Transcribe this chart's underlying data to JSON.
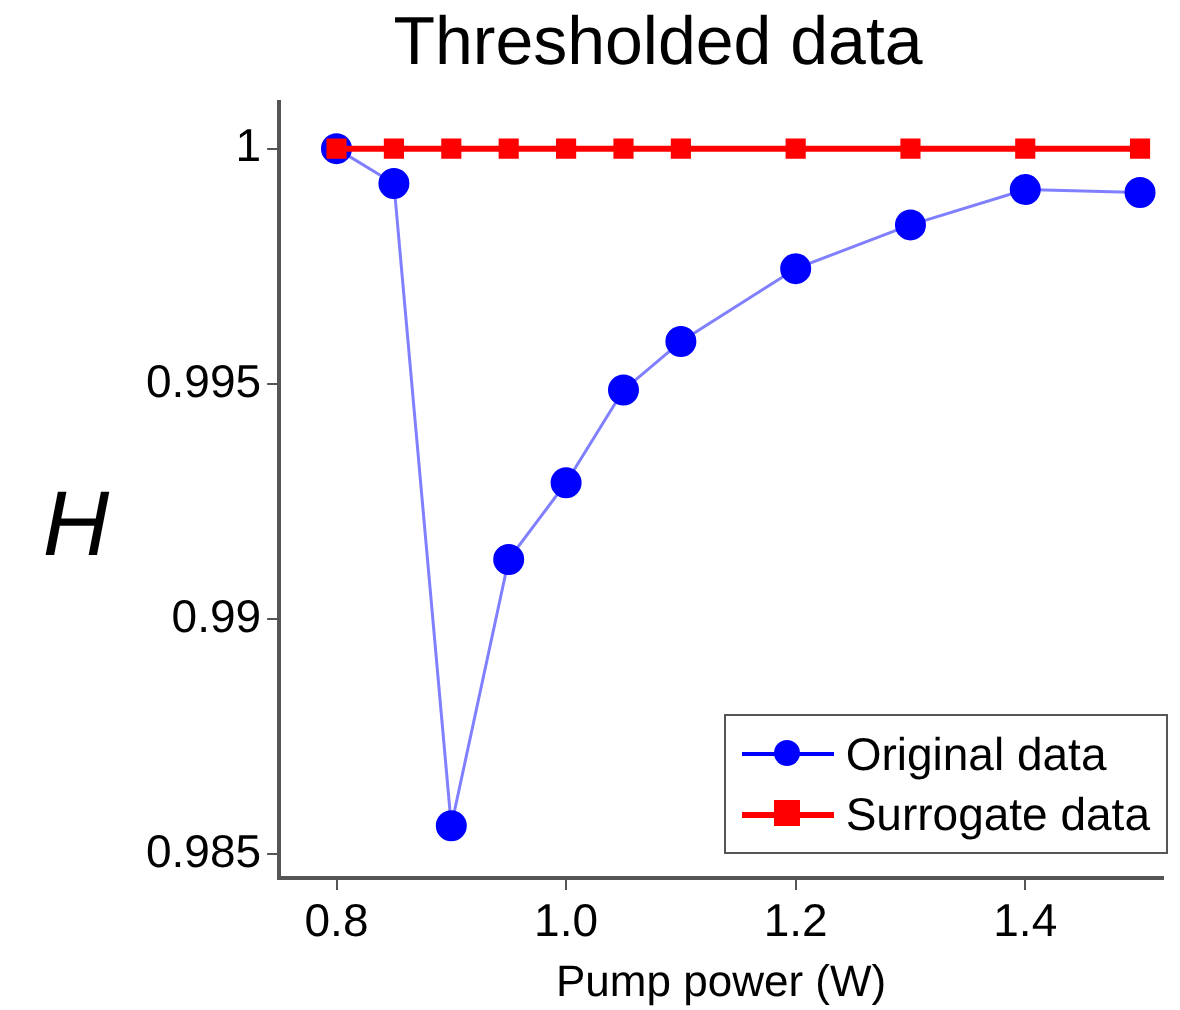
{
  "chart_data": {
    "type": "line",
    "title": "Thresholded data",
    "xlabel": "Pump power (W)",
    "ylabel": "H",
    "x": [
      0.8,
      0.85,
      0.9,
      0.95,
      1.0,
      1.05,
      1.1,
      1.2,
      1.3,
      1.4,
      1.5
    ],
    "series": [
      {
        "name": "Original data",
        "color": "#0000ff",
        "marker": "circle",
        "values": [
          1.0,
          0.99926,
          0.98561,
          0.99127,
          0.9929,
          0.99487,
          0.9959,
          0.99745,
          0.99838,
          0.99913,
          0.99907
        ]
      },
      {
        "name": "Surrogate data",
        "color": "#ff0000",
        "marker": "square",
        "values": [
          1.0,
          1.0,
          1.0,
          1.0,
          1.0,
          1.0,
          1.0,
          1.0,
          1.0,
          1.0,
          1.0
        ]
      }
    ],
    "xlim": [
      0.75,
      1.52
    ],
    "xticks": [
      {
        "value": 0.8,
        "label": "0.8"
      },
      {
        "value": 1.0,
        "label": "1.0"
      },
      {
        "value": 1.2,
        "label": "1.2"
      },
      {
        "value": 1.4,
        "label": "1.4"
      }
    ],
    "ylim": [
      0.9845,
      1.001
    ],
    "yticks": [
      0.985,
      0.99,
      0.995,
      1
    ],
    "grid": false,
    "legend": "bottom right"
  }
}
